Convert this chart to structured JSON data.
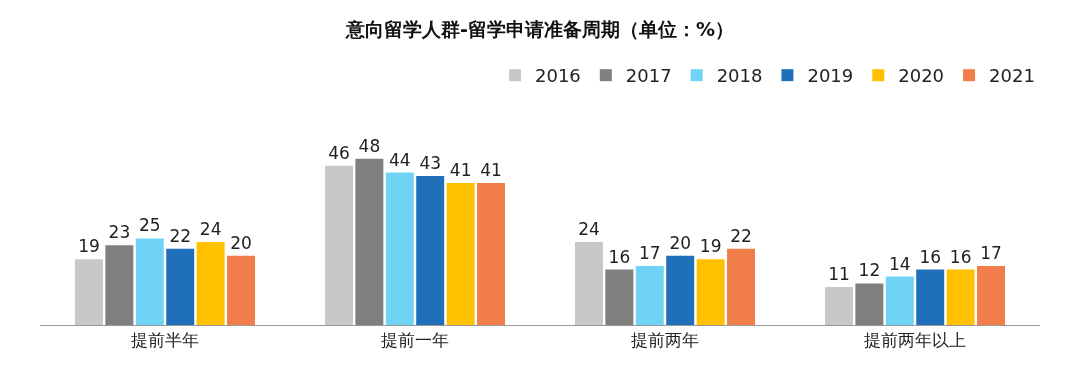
{
  "chart_data": {
    "type": "bar",
    "title": "意向留学人群-留学申请准备周期（单位：%）",
    "categories": [
      "提前半年",
      "提前一年",
      "提前两年",
      "提前两年以上"
    ],
    "series": [
      {
        "name": "2016",
        "color": "#c8c8c8",
        "values": [
          19,
          46,
          24,
          11
        ]
      },
      {
        "name": "2017",
        "color": "#7f7f7f",
        "values": [
          23,
          48,
          16,
          12
        ]
      },
      {
        "name": "2018",
        "color": "#6fd3f5",
        "values": [
          25,
          44,
          17,
          14
        ]
      },
      {
        "name": "2019",
        "color": "#1f6fba",
        "values": [
          22,
          43,
          20,
          16
        ]
      },
      {
        "name": "2020",
        "color": "#ffc000",
        "values": [
          24,
          41,
          19,
          16
        ]
      },
      {
        "name": "2021",
        "color": "#f07d4a",
        "values": [
          20,
          41,
          22,
          17
        ]
      }
    ],
    "data_labels": true,
    "legend": "top right"
  }
}
